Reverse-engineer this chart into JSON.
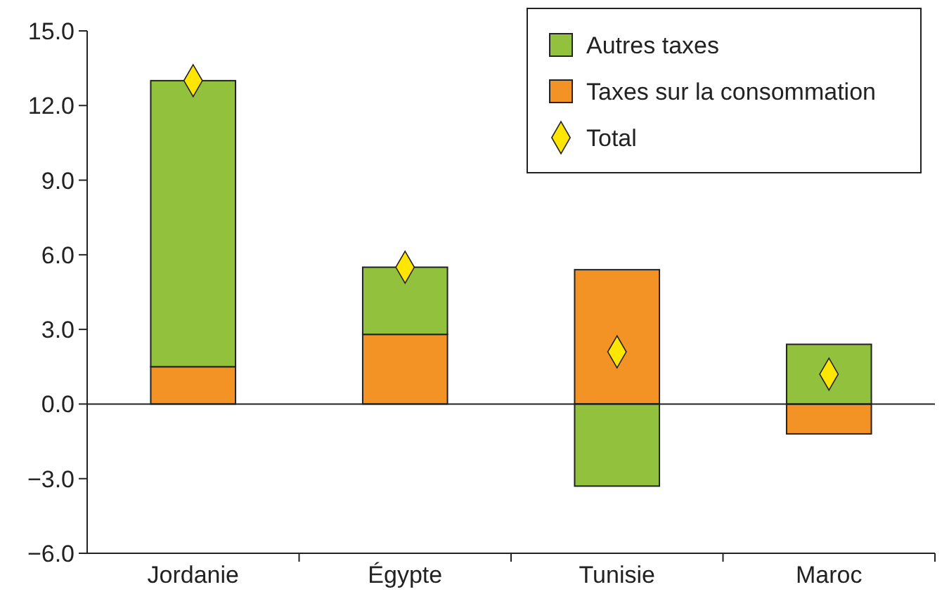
{
  "chart_data": {
    "type": "bar",
    "stacked": true,
    "categories": [
      "Jordanie",
      "Égypte",
      "Tunisie",
      "Maroc"
    ],
    "series": [
      {
        "name": "Taxes sur la consommation",
        "color": "#f39325",
        "values": [
          1.5,
          2.8,
          5.4,
          -1.2
        ]
      },
      {
        "name": "Autres taxes",
        "color": "#92c13e",
        "values": [
          11.5,
          2.7,
          -3.3,
          2.4
        ]
      },
      {
        "name": "Total",
        "type": "scatter",
        "marker": "diamond",
        "color": "#ffe600",
        "x": [
          "Jordanie",
          "Égypte",
          "Tunisie",
          "Maroc"
        ],
        "values": [
          13.0,
          5.5,
          2.1,
          1.2
        ]
      }
    ],
    "ylim": [
      -6,
      15
    ],
    "yticks": [
      {
        "value": -6,
        "label": "−6.0"
      },
      {
        "value": -3,
        "label": "−3.0"
      },
      {
        "value": 0,
        "label": "0.0"
      },
      {
        "value": 3,
        "label": "3.0"
      },
      {
        "value": 6,
        "label": "6.0"
      },
      {
        "value": 9,
        "label": "9.0"
      },
      {
        "value": 12,
        "label": "12.0"
      },
      {
        "value": 15,
        "label": "15.0"
      }
    ],
    "legend": "top right"
  }
}
